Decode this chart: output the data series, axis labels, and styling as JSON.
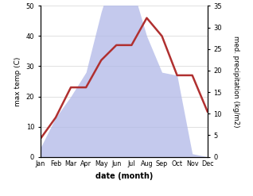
{
  "months": [
    "Jan",
    "Feb",
    "Mar",
    "Apr",
    "May",
    "Jun",
    "Jul",
    "Aug",
    "Sep",
    "Oct",
    "Nov",
    "Dec"
  ],
  "temperature": [
    6,
    13,
    23,
    23,
    32,
    37,
    37,
    46,
    40,
    27,
    27,
    15
  ],
  "precipitation": [
    3,
    13,
    20,
    28,
    48,
    64,
    57,
    40,
    28,
    27,
    1,
    0
  ],
  "temp_color": "#b03030",
  "precip_color": "#b0b8e8",
  "temp_ylim": [
    0,
    50
  ],
  "precip_ylim": [
    0,
    70
  ],
  "temp_yticks": [
    0,
    10,
    20,
    30,
    40,
    50
  ],
  "precip_yticks": [
    0,
    5,
    10,
    15,
    20,
    25,
    30,
    35
  ],
  "precip_ytick_labels": [
    "0",
    "5",
    "10",
    "15",
    "20",
    "25",
    "30",
    "35"
  ],
  "ylabel_left": "max temp (C)",
  "ylabel_right": "med. precipitation (kg/m2)",
  "xlabel": "date (month)",
  "bg_color": "#ffffff"
}
